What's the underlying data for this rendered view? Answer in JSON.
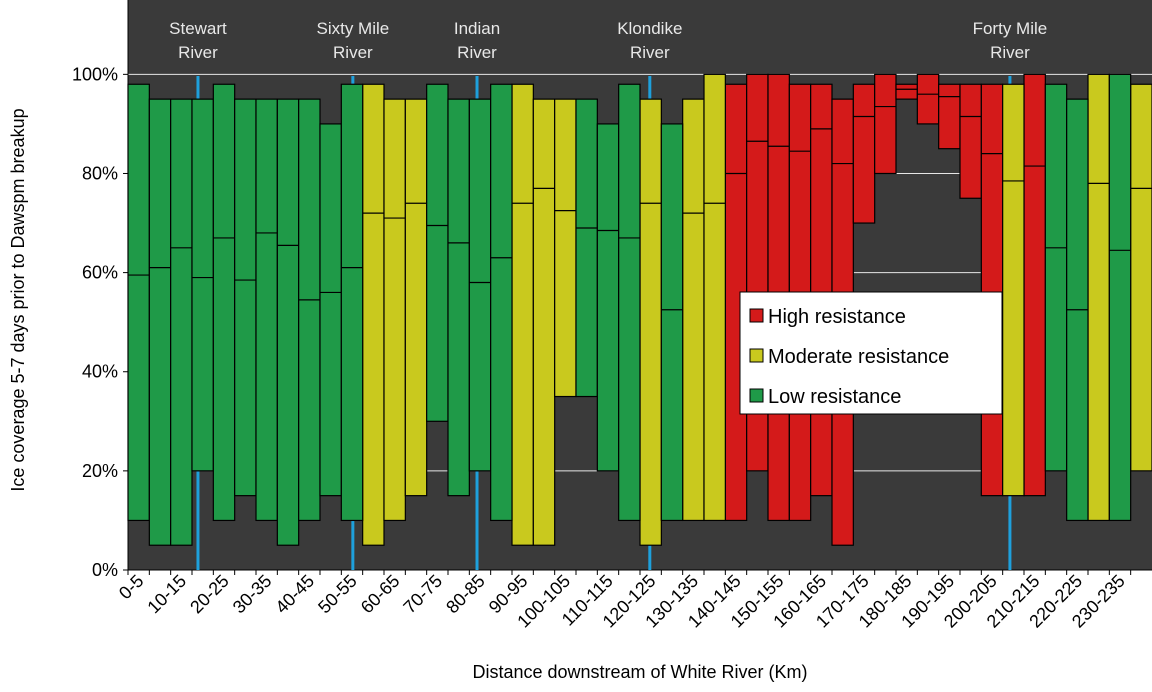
{
  "chart_data": {
    "type": "floating-bar",
    "xlabel": "Distance downstream of White River (Km)",
    "ylabel": "Ice coverage 5-7 days prior to Dawspm breakup",
    "categories": [
      "0-5",
      null,
      "10-15",
      null,
      "20-25",
      null,
      "30-35",
      null,
      "40-45",
      null,
      "50-55",
      null,
      "60-65",
      null,
      "70-75",
      null,
      "80-85",
      null,
      "90-95",
      null,
      "100-105",
      null,
      "110-115",
      null,
      "120-125",
      null,
      "130-135",
      null,
      "140-145",
      null,
      "150-155",
      null,
      "160-165",
      null,
      "170-175",
      null,
      "180-185",
      null,
      "190-195",
      null,
      "200-205",
      null,
      "210-215",
      null,
      "220-225",
      null,
      "230-235",
      null
    ],
    "series": [
      {
        "name": "High resistance",
        "color": "#d41a1a",
        "low": [
          null,
          null,
          null,
          null,
          null,
          null,
          null,
          null,
          null,
          null,
          null,
          null,
          null,
          null,
          null,
          null,
          null,
          null,
          null,
          null,
          null,
          null,
          null,
          null,
          null,
          null,
          null,
          null,
          10,
          20,
          10,
          10,
          15,
          5,
          70,
          80,
          95,
          90,
          85,
          75,
          15,
          null,
          15,
          null,
          null,
          null,
          null,
          null
        ],
        "median": [
          null,
          null,
          null,
          null,
          null,
          null,
          null,
          null,
          null,
          null,
          null,
          null,
          null,
          null,
          null,
          null,
          null,
          null,
          null,
          null,
          null,
          null,
          null,
          null,
          null,
          null,
          null,
          null,
          80,
          86.5,
          85.5,
          84.5,
          89,
          82,
          91.5,
          93.5,
          97,
          96,
          95.5,
          91.5,
          84,
          null,
          81.5,
          null,
          null,
          null,
          null,
          null
        ],
        "high": [
          null,
          null,
          null,
          null,
          null,
          null,
          null,
          null,
          null,
          null,
          null,
          null,
          null,
          null,
          null,
          null,
          null,
          null,
          null,
          null,
          null,
          null,
          null,
          null,
          null,
          null,
          null,
          null,
          98,
          100,
          100,
          98,
          98,
          95,
          98,
          100,
          98,
          100,
          98,
          98,
          98,
          null,
          100,
          null,
          null,
          null,
          null,
          null
        ]
      },
      {
        "name": "Moderate resistance",
        "color": "#c9c91e",
        "low": [
          null,
          null,
          null,
          null,
          null,
          null,
          null,
          null,
          null,
          null,
          null,
          5,
          10,
          15,
          null,
          null,
          null,
          null,
          5,
          5,
          35,
          null,
          null,
          null,
          5,
          null,
          10,
          10,
          null,
          null,
          null,
          null,
          null,
          null,
          null,
          null,
          null,
          null,
          null,
          null,
          null,
          15,
          null,
          null,
          null,
          10,
          null,
          20
        ],
        "median": [
          null,
          null,
          null,
          null,
          null,
          null,
          null,
          null,
          null,
          null,
          null,
          72,
          71,
          74,
          null,
          null,
          null,
          null,
          74,
          77,
          72.5,
          null,
          null,
          null,
          74,
          null,
          72,
          74,
          null,
          null,
          null,
          null,
          null,
          null,
          null,
          null,
          null,
          null,
          null,
          null,
          null,
          78.5,
          null,
          null,
          null,
          78,
          null,
          77
        ],
        "high": [
          null,
          null,
          null,
          null,
          null,
          null,
          null,
          null,
          null,
          null,
          null,
          98,
          95,
          95,
          null,
          null,
          null,
          null,
          98,
          95,
          95,
          null,
          null,
          null,
          95,
          null,
          95,
          100,
          null,
          null,
          null,
          null,
          null,
          null,
          null,
          null,
          null,
          null,
          null,
          null,
          null,
          98,
          null,
          null,
          null,
          100,
          null,
          98
        ]
      },
      {
        "name": "Low resistance",
        "color": "#1f9a48",
        "low": [
          10,
          5,
          5,
          20,
          10,
          15,
          10,
          5,
          10,
          15,
          10,
          null,
          null,
          null,
          30,
          15,
          20,
          10,
          null,
          null,
          null,
          35,
          20,
          10,
          null,
          10,
          null,
          null,
          null,
          null,
          null,
          null,
          null,
          null,
          null,
          null,
          null,
          null,
          null,
          null,
          null,
          null,
          null,
          20,
          10,
          null,
          10,
          null
        ],
        "median": [
          59.5,
          61,
          65,
          59,
          67,
          58.5,
          68,
          65.5,
          54.5,
          56,
          61,
          null,
          null,
          null,
          69.5,
          66,
          58,
          63,
          null,
          null,
          null,
          69,
          68.5,
          67,
          null,
          52.5,
          null,
          null,
          null,
          null,
          null,
          null,
          null,
          null,
          null,
          null,
          null,
          null,
          null,
          null,
          null,
          null,
          null,
          65,
          52.5,
          null,
          64.5,
          null
        ],
        "high": [
          98,
          95,
          95,
          95,
          98,
          95,
          95,
          95,
          95,
          90,
          98,
          null,
          null,
          null,
          98,
          95,
          95,
          98,
          null,
          null,
          null,
          95,
          90,
          98,
          null,
          90,
          null,
          null,
          null,
          null,
          null,
          null,
          null,
          null,
          null,
          null,
          null,
          null,
          null,
          null,
          null,
          null,
          null,
          98,
          95,
          null,
          100,
          null
        ]
      }
    ],
    "xlim": [
      0,
      240
    ],
    "ylim": [
      0,
      115
    ],
    "yticks": [
      {
        "value": 0,
        "label": "0%"
      },
      {
        "value": 20,
        "label": "20%"
      },
      {
        "value": 40,
        "label": "40%"
      },
      {
        "value": 60,
        "label": "60%"
      },
      {
        "value": 80,
        "label": "80%"
      },
      {
        "value": 100,
        "label": "100%"
      }
    ],
    "grid": true,
    "annotations": [
      {
        "lines": [
          "Stewart",
          "River"
        ],
        "x": 16.4
      },
      {
        "lines": [
          "Sixty Mile",
          "River"
        ],
        "x": 52.7
      },
      {
        "lines": [
          "Indian",
          "River"
        ],
        "x": 81.8
      },
      {
        "lines": [
          "Klondike",
          "River"
        ],
        "x": 122.3
      },
      {
        "lines": [
          "Forty Mile",
          "River"
        ],
        "x": 206.7
      }
    ]
  }
}
